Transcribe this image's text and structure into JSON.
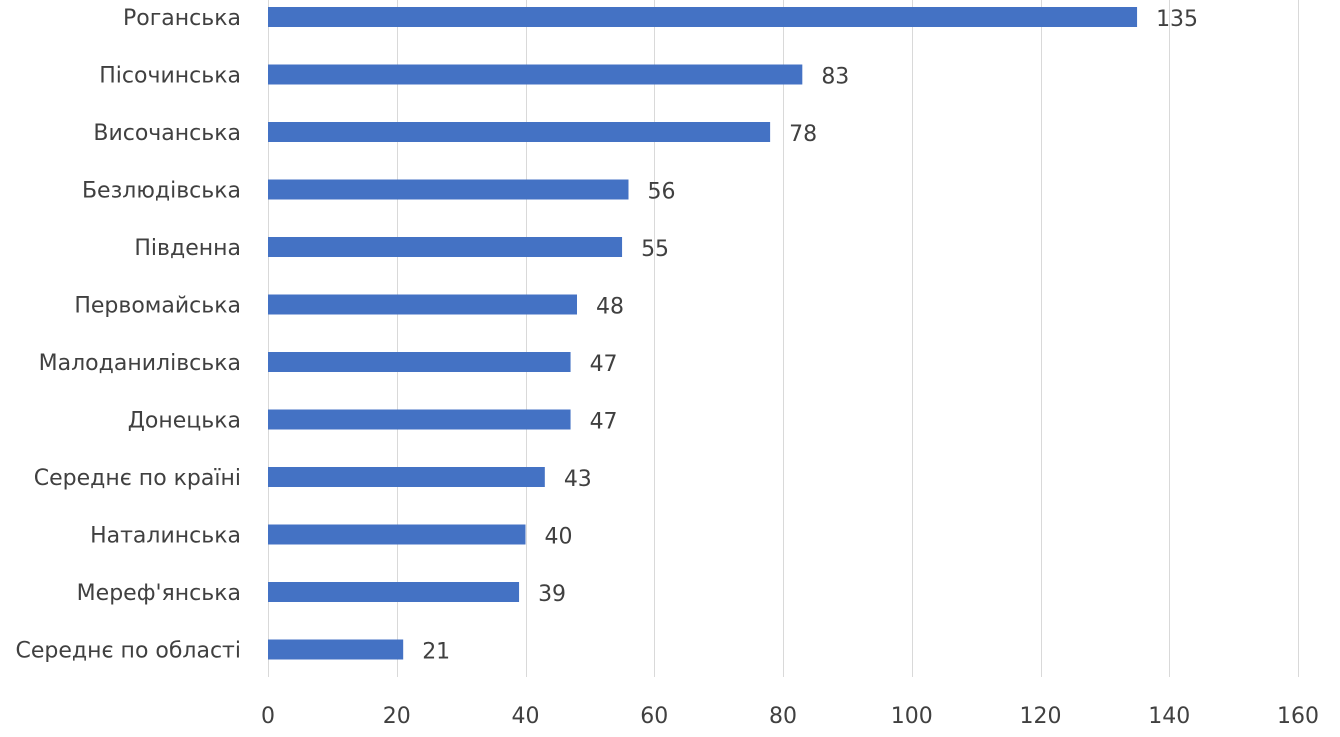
{
  "chart_data": {
    "type": "bar",
    "orientation": "horizontal",
    "categories": [
      "Роганська",
      "Пісочинська",
      "Височанська",
      "Безлюдівська",
      "Південна",
      "Первомайська",
      "Малоданилівська",
      "Донецька",
      "Середнє по країні",
      "Наталинська",
      "Мереф'янська",
      "Середнє по області"
    ],
    "values": [
      135,
      83,
      78,
      56,
      55,
      48,
      47,
      47,
      43,
      40,
      39,
      21
    ],
    "title": "",
    "xlabel": "",
    "ylabel": "",
    "xlim": [
      0,
      160
    ],
    "x_ticks": [
      0,
      20,
      40,
      60,
      80,
      100,
      120,
      140,
      160
    ],
    "grid": true,
    "data_labels": true,
    "legend": "none",
    "bar_color": "#4472c4"
  }
}
